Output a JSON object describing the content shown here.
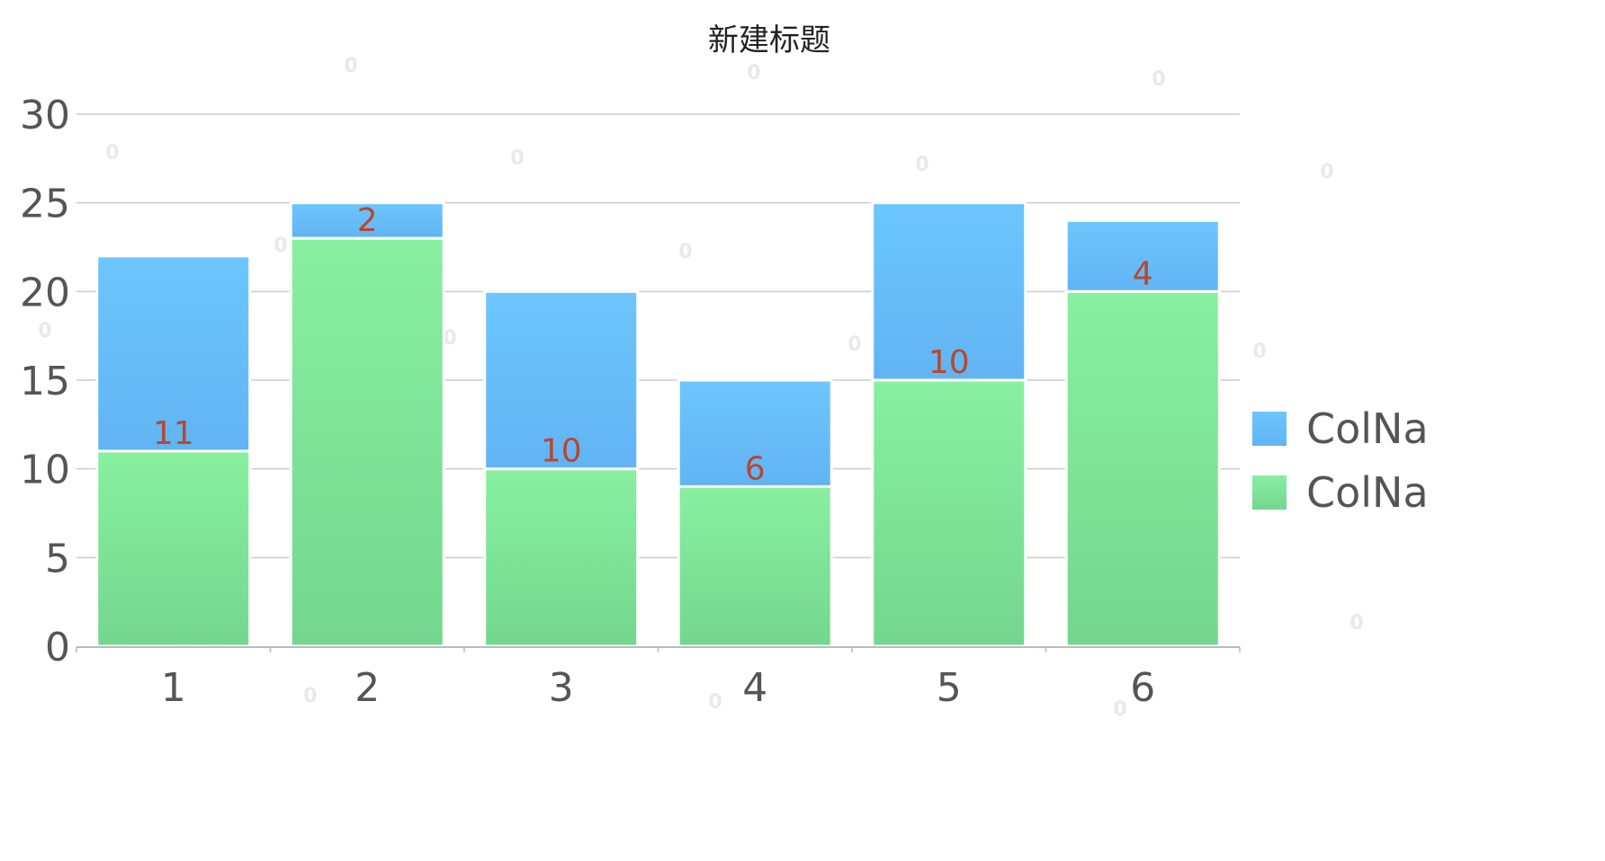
{
  "chart_data": {
    "type": "bar",
    "stacked": true,
    "title": "新建标题",
    "categories": [
      "1",
      "2",
      "3",
      "4",
      "5",
      "6"
    ],
    "ylim": [
      0,
      30
    ],
    "yticks": [
      0,
      5,
      10,
      15,
      20,
      25,
      30
    ],
    "grid": true,
    "legend_position": "right",
    "watermark": "0",
    "series": [
      {
        "name": "ColNa",
        "color_top": "#88f0a0",
        "color_bottom": "#74d68e",
        "values": [
          11,
          23,
          10,
          9,
          15,
          20
        ],
        "show_labels": false
      },
      {
        "name": "ColNa",
        "color_top": "#6cc6fc",
        "color_bottom": "#62b4f4",
        "values": [
          11,
          2,
          10,
          6,
          10,
          4
        ],
        "show_labels": true
      }
    ],
    "colors": {
      "label": "#b8472f",
      "axis": "#bbbbbb",
      "grid": "#cccccc",
      "tick_text": "#555555"
    }
  }
}
